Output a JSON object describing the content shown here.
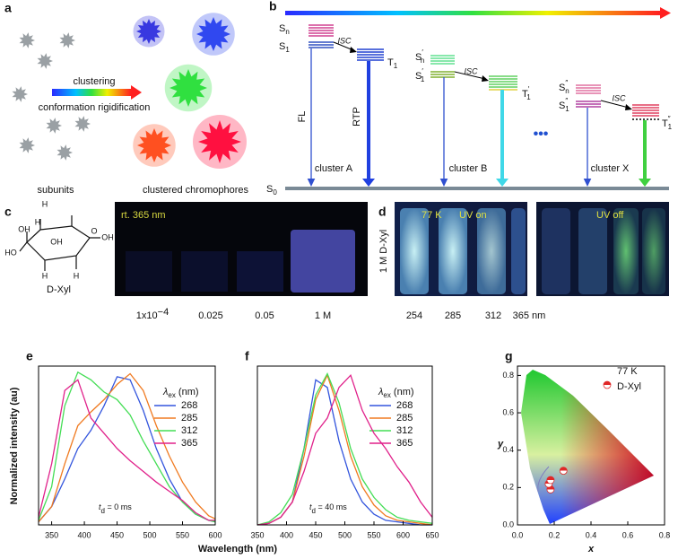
{
  "panel_a": {
    "label": "a",
    "arrow_top": "clustering",
    "arrow_bottom": "conformation rigidification",
    "left_caption": "subunits",
    "right_caption": "clustered chromophores"
  },
  "panel_b": {
    "label": "b",
    "levels": [
      {
        "symbol": "S",
        "sub": "n"
      },
      {
        "symbol": "S",
        "sub": "1"
      },
      {
        "symbol": "T",
        "sub": "1"
      },
      {
        "symbol": "S",
        "sup": "′",
        "sub": "n"
      },
      {
        "symbol": "S",
        "sup": "′",
        "sub": "1"
      },
      {
        "symbol": "T",
        "sup": "′",
        "sub": "1"
      },
      {
        "symbol": "S",
        "sup": "″",
        "sub": "n"
      },
      {
        "symbol": "S",
        "sup": "″",
        "sub": "1"
      },
      {
        "symbol": "T",
        "sup": "″",
        "sub": "1"
      },
      {
        "symbol": "S",
        "sub": "0"
      }
    ],
    "isc": [
      "ISC",
      "ISC",
      "ISC"
    ],
    "emissions": [
      "FL",
      "RTP"
    ],
    "clusters": [
      "cluster A",
      "cluster B",
      "cluster X"
    ]
  },
  "panel_c": {
    "label": "c",
    "compound": "D-Xyl",
    "structure_labels": [
      "H",
      "O",
      "HO",
      "OH",
      "H",
      "H",
      "H",
      "OH",
      "OH"
    ],
    "photo_caption": "rt. 365 nm",
    "concentrations": [
      {
        "base": "1x10",
        "sup": "−4"
      },
      {
        "base": "0.025"
      },
      {
        "base": "0.05"
      },
      {
        "base": "1 M"
      }
    ]
  },
  "panel_d": {
    "label": "d",
    "sample": "1 M D-Xyl",
    "temperature": "77 K",
    "uv_on": "UV on",
    "uv_off": "UV off",
    "wavelengths": [
      "254",
      "285",
      "312",
      "365 nm"
    ]
  },
  "chart_data": [
    {
      "type": "line",
      "label": "e",
      "xlabel": "Wavelength (nm)",
      "ylabel": "Normalized intensity (au)",
      "legend_title": {
        "symbol": "λ",
        "sub": "ex",
        "unit": " (nm)"
      },
      "annotation": {
        "symbol": "t",
        "sub": "d",
        "text": " = 0 ms"
      },
      "xlim": [
        330,
        600
      ],
      "ylim": [
        0,
        1.04
      ],
      "xticks": [
        350,
        400,
        450,
        500,
        550,
        600
      ],
      "x": [
        330,
        350,
        370,
        390,
        410,
        430,
        450,
        470,
        490,
        510,
        530,
        550,
        570,
        590,
        600
      ],
      "series": [
        {
          "name": "268",
          "color": "#3355dd",
          "values": [
            0.02,
            0.12,
            0.3,
            0.5,
            0.62,
            0.78,
            0.97,
            0.95,
            0.75,
            0.5,
            0.3,
            0.15,
            0.07,
            0.03,
            0.02
          ]
        },
        {
          "name": "285",
          "color": "#f07a20",
          "values": [
            0.02,
            0.12,
            0.4,
            0.65,
            0.74,
            0.82,
            0.92,
            0.99,
            0.88,
            0.65,
            0.45,
            0.28,
            0.15,
            0.06,
            0.04
          ]
        },
        {
          "name": "312",
          "color": "#44dd55",
          "values": [
            0.03,
            0.25,
            0.78,
            1.0,
            0.95,
            0.87,
            0.82,
            0.72,
            0.55,
            0.4,
            0.25,
            0.15,
            0.07,
            0.03,
            0.02
          ]
        },
        {
          "name": "365",
          "color": "#e0208a",
          "values": [
            0.05,
            0.4,
            0.88,
            0.95,
            0.7,
            0.6,
            0.5,
            0.42,
            0.35,
            0.28,
            0.22,
            0.16,
            0.08,
            0.03,
            0.03
          ]
        }
      ]
    },
    {
      "type": "line",
      "label": "f",
      "legend_title": {
        "symbol": "λ",
        "sub": "ex",
        "unit": " (nm)"
      },
      "annotation": {
        "symbol": "t",
        "sub": "d",
        "text": " = 40 ms"
      },
      "xlim": [
        350,
        650
      ],
      "ylim": [
        0,
        1.04
      ],
      "xticks": [
        350,
        400,
        450,
        500,
        550,
        600,
        650
      ],
      "x": [
        350,
        370,
        390,
        410,
        430,
        450,
        470,
        490,
        510,
        530,
        550,
        570,
        590,
        610,
        630,
        650
      ],
      "series": [
        {
          "name": "268",
          "color": "#3355dd",
          "values": [
            0,
            0.01,
            0.05,
            0.15,
            0.5,
            0.95,
            0.9,
            0.55,
            0.3,
            0.15,
            0.07,
            0.03,
            0.02,
            0.01,
            0,
            0
          ]
        },
        {
          "name": "285",
          "color": "#f07a20",
          "values": [
            0,
            0.01,
            0.05,
            0.15,
            0.45,
            0.82,
            0.98,
            0.75,
            0.45,
            0.25,
            0.13,
            0.06,
            0.03,
            0.02,
            0.01,
            0
          ]
        },
        {
          "name": "312",
          "color": "#44dd55",
          "values": [
            0,
            0.02,
            0.08,
            0.2,
            0.5,
            0.85,
            0.99,
            0.8,
            0.5,
            0.3,
            0.18,
            0.1,
            0.05,
            0.03,
            0.02,
            0.01
          ]
        },
        {
          "name": "365",
          "color": "#e0208a",
          "values": [
            0,
            0.01,
            0.05,
            0.15,
            0.35,
            0.6,
            0.7,
            0.9,
            0.98,
            0.75,
            0.6,
            0.5,
            0.38,
            0.28,
            0.15,
            0.05
          ]
        }
      ]
    },
    {
      "type": "scatter",
      "label": "g",
      "xlabel": "x",
      "ylabel": "y",
      "legend": [
        "77 K",
        "D-Xyl"
      ],
      "color": "#e02828",
      "xlim": [
        0,
        0.8
      ],
      "ylim": [
        0,
        0.85
      ],
      "xticks": [
        {
          "value": 0,
          "label": "0.0"
        },
        0.2,
        0.4,
        0.6,
        0.8
      ],
      "yticks": [
        {
          "value": 0,
          "label": "0.0"
        },
        0.2,
        0.4,
        0.6,
        0.8
      ],
      "x": [
        0.18,
        0.17,
        0.18,
        0.25
      ],
      "y": [
        0.19,
        0.22,
        0.24,
        0.29
      ]
    }
  ]
}
